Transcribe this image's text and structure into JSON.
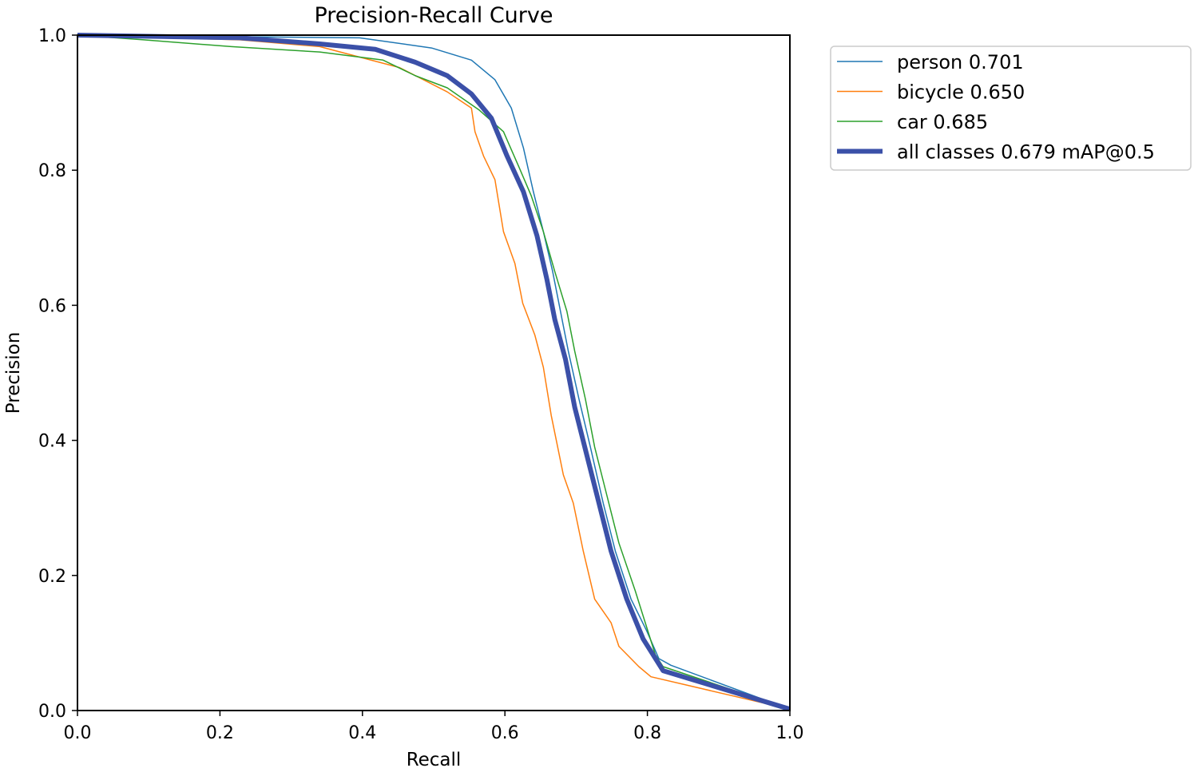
{
  "chart_data": {
    "type": "line",
    "title": "Precision-Recall Curve",
    "xlabel": "Recall",
    "ylabel": "Precision",
    "xlim": [
      0,
      1
    ],
    "ylim": [
      0,
      1
    ],
    "xticks": [
      "0.0",
      "0.2",
      "0.4",
      "0.6",
      "0.8",
      "1.0"
    ],
    "yticks": [
      "0.0",
      "0.2",
      "0.4",
      "0.6",
      "0.8",
      "1.0"
    ],
    "grid": false,
    "legend_position": "outside-top-right",
    "series": [
      {
        "name": "person 0.701",
        "color": "#1f77b4",
        "width": 1.5,
        "x": [
          0,
          0.396,
          0.497,
          0.553,
          0.586,
          0.609,
          0.626,
          0.64,
          0.654,
          0.667,
          0.678,
          0.689,
          0.704,
          0.72,
          0.738,
          0.755,
          0.777,
          0.799,
          0.816,
          0.833,
          1.0
        ],
        "y": [
          1.0,
          0.996,
          0.981,
          0.963,
          0.934,
          0.892,
          0.833,
          0.768,
          0.709,
          0.65,
          0.591,
          0.532,
          0.461,
          0.39,
          0.307,
          0.236,
          0.165,
          0.118,
          0.077,
          0.067,
          0.002
        ]
      },
      {
        "name": "bicycle 0.650",
        "color": "#ff7f0e",
        "width": 1.5,
        "x": [
          0,
          0.228,
          0.34,
          0.452,
          0.519,
          0.553,
          0.558,
          0.57,
          0.586,
          0.598,
          0.614,
          0.625,
          0.642,
          0.654,
          0.665,
          0.682,
          0.696,
          0.71,
          0.726,
          0.749,
          0.76,
          0.788,
          0.805,
          1.0
        ],
        "y": [
          1.0,
          0.993,
          0.983,
          0.952,
          0.916,
          0.892,
          0.857,
          0.821,
          0.786,
          0.709,
          0.662,
          0.603,
          0.556,
          0.508,
          0.437,
          0.349,
          0.307,
          0.236,
          0.165,
          0.13,
          0.095,
          0.065,
          0.05,
          0.002
        ]
      },
      {
        "name": "car 0.685",
        "color": "#2ca02c",
        "width": 1.5,
        "x": [
          0,
          0.093,
          0.216,
          0.34,
          0.429,
          0.474,
          0.519,
          0.564,
          0.598,
          0.62,
          0.637,
          0.654,
          0.67,
          0.687,
          0.698,
          0.713,
          0.726,
          0.743,
          0.76,
          0.783,
          0.797,
          0.811,
          0.822,
          1.0
        ],
        "y": [
          1.0,
          0.993,
          0.983,
          0.975,
          0.963,
          0.94,
          0.922,
          0.889,
          0.857,
          0.804,
          0.762,
          0.709,
          0.65,
          0.591,
          0.532,
          0.461,
          0.39,
          0.319,
          0.248,
          0.177,
          0.13,
          0.083,
          0.065,
          0.002
        ]
      },
      {
        "name": "all classes 0.679 mAP@0.5",
        "color": "#3b50a8",
        "width": 6,
        "x": [
          0,
          0.228,
          0.34,
          0.418,
          0.474,
          0.519,
          0.553,
          0.581,
          0.603,
          0.626,
          0.645,
          0.659,
          0.67,
          0.685,
          0.698,
          0.715,
          0.732,
          0.749,
          0.771,
          0.794,
          0.822,
          1.0
        ],
        "y": [
          1.0,
          0.996,
          0.987,
          0.979,
          0.96,
          0.94,
          0.913,
          0.877,
          0.821,
          0.768,
          0.703,
          0.638,
          0.579,
          0.52,
          0.449,
          0.378,
          0.307,
          0.236,
          0.165,
          0.106,
          0.059,
          0.002
        ]
      }
    ]
  }
}
